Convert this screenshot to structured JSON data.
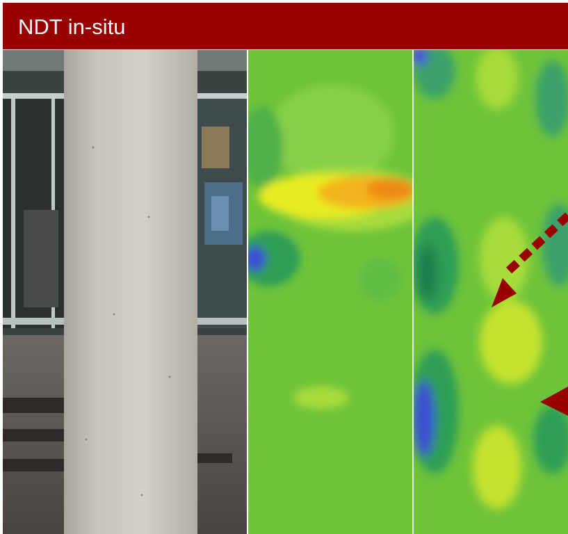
{
  "slide": {
    "title": "NDT in-situ",
    "title_bar_color": "#990000",
    "title_text_color": "#ffffff"
  },
  "panels": [
    {
      "name": "column-photo",
      "kind": "photograph"
    },
    {
      "name": "scan-map-left",
      "kind": "color-contour map"
    },
    {
      "name": "scan-map-right",
      "kind": "color-contour map"
    }
  ],
  "annotations": {
    "arrow_color": "#990000",
    "arrows": [
      "dashed-arrow",
      "solid-arrow"
    ]
  },
  "colors": {
    "scan_base": "#6fc43a",
    "scan_hot": "#f08a18",
    "scan_warm": "#f2ee1a",
    "scan_cool": "#2f9e56",
    "scan_cold": "#3a4fd0"
  }
}
